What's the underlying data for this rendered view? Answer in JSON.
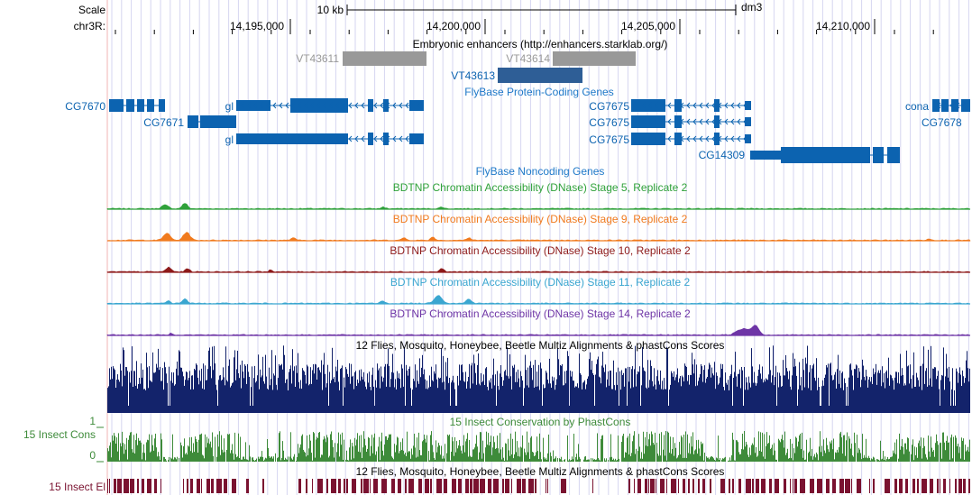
{
  "browser": {
    "scale_label": "Scale",
    "chrom_label": "chr3R:",
    "scale_bar_text": "10 kb",
    "assembly": "dm3",
    "ticks": [
      "14,195,000",
      "14,200,000",
      "14,205,000",
      "14,210,000"
    ]
  },
  "colors": {
    "blue_gene": "#0C63B0",
    "gray_enh": "#999999",
    "green": "#2FA13A",
    "orange": "#F07A1E",
    "darkred": "#8E1A1A",
    "lightblue": "#3AA6D0",
    "purple": "#6E35A6",
    "navy": "#13236B",
    "cons_green": "#3E8B3A",
    "elem_red": "#7A1230",
    "grid": "#D6D6F0",
    "left_line": "#F2B6B6"
  },
  "tracks": {
    "enhancers": {
      "title": "Embryonic enhancers (http://enhancers.starklab.org/)",
      "items": [
        "VT43611",
        "VT43614",
        "VT43613"
      ]
    },
    "protein_genes": {
      "title": "FlyBase Protein-Coding Genes",
      "genes": [
        "CG7670",
        "CG7671",
        "gl",
        "gl",
        "CG7675",
        "CG7675",
        "CG7675",
        "CG14309",
        "cona",
        "CG7678"
      ]
    },
    "noncoding": {
      "title": "FlyBase Noncoding Genes"
    },
    "dnase": [
      {
        "title": "BDTNP Chromatin Accessibility (DNase) Stage 5, Replicate 2"
      },
      {
        "title": "BDTNP Chromatin Accessibility (DNase) Stage 9, Replicate 2"
      },
      {
        "title": "BDTNP Chromatin Accessibility (DNase) Stage 10, Replicate 2"
      },
      {
        "title": "BDTNP Chromatin Accessibility (DNase) Stage 11, Replicate 2"
      },
      {
        "title": "BDTNP Chromatin Accessibility (DNase) Stage 14, Replicate 2"
      }
    ],
    "multiz": {
      "title": "12 Flies, Mosquito, Honeybee, Beetle Multiz Alignments & phastCons Scores"
    },
    "insect_cons": {
      "title": "15 Insect Conservation by PhastCons",
      "side_label": "15 Insect Cons",
      "ymax": "1",
      "ymin": "0"
    },
    "elements": {
      "title": "12 Flies, Mosquito, Honeybee, Beetle Multiz Alignments & phastCons Scores",
      "side_label": "15 Insect El"
    }
  }
}
